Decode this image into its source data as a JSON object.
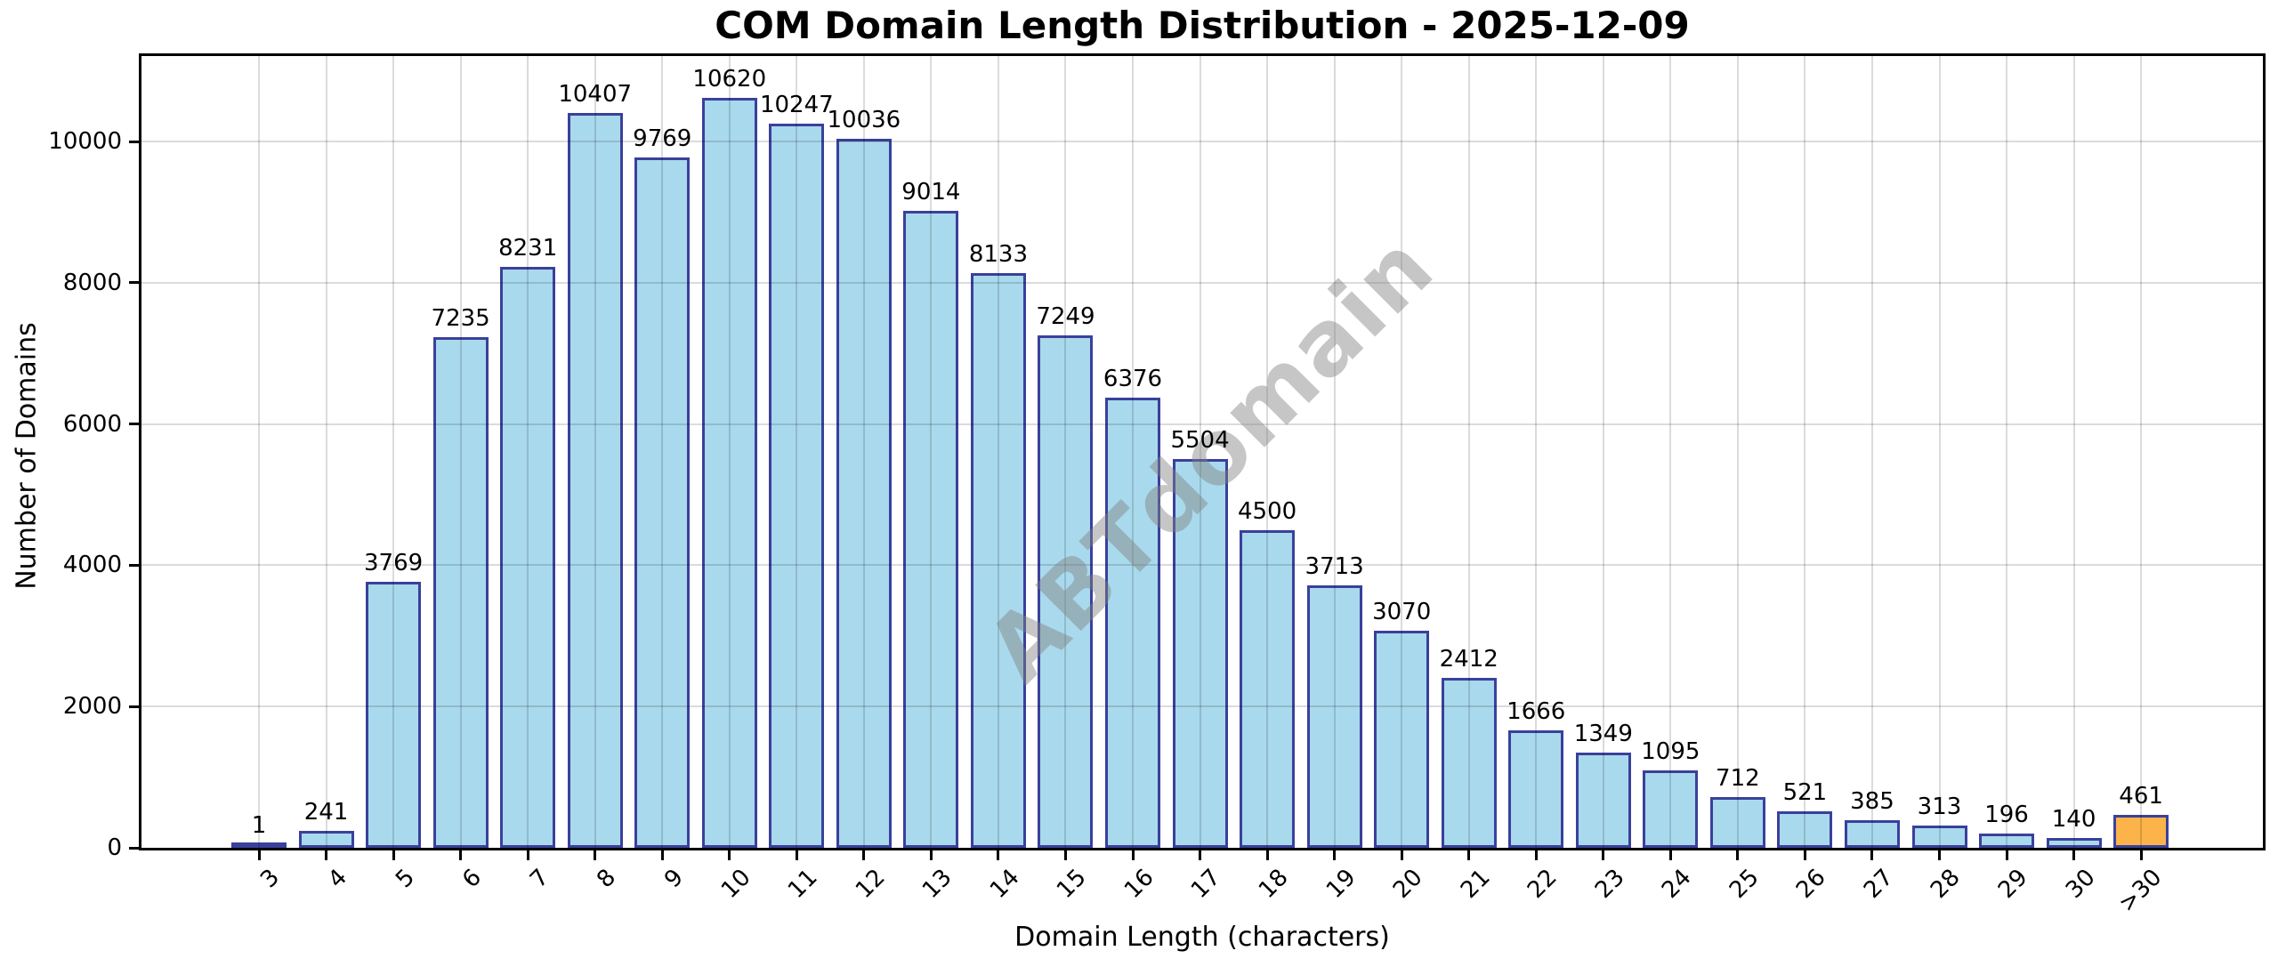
{
  "page": {
    "background": "#ffffff"
  },
  "chart_data": {
    "type": "bar",
    "title": "COM Domain Length Distribution - 2025-12-09",
    "xlabel": "Domain Length (characters)",
    "ylabel": "Number of Domains",
    "categories": [
      "3",
      "4",
      "5",
      "6",
      "7",
      "8",
      "9",
      "10",
      "11",
      "12",
      "13",
      "14",
      "15",
      "16",
      "17",
      "18",
      "19",
      "20",
      "21",
      "22",
      "23",
      "24",
      "25",
      "26",
      "27",
      "28",
      "29",
      "30",
      ">30"
    ],
    "values": [
      1,
      241,
      3769,
      7235,
      8231,
      10407,
      9769,
      10620,
      10247,
      10036,
      9014,
      8133,
      7249,
      6376,
      5504,
      4500,
      3713,
      3070,
      2412,
      1666,
      1349,
      1095,
      712,
      521,
      385,
      313,
      196,
      140,
      461
    ],
    "value_labels_shown": true,
    "yticks": [
      0,
      2000,
      4000,
      6000,
      8000,
      10000
    ],
    "ylim": [
      0,
      11210
    ],
    "grid": true,
    "xticklabel_rotation": 45,
    "legend": "none",
    "watermark": "ABTdomain",
    "colors": {
      "bar_fill": "#a9d9ec",
      "bar_edge": "#3a409b",
      "highlight_fill": "#fbb34a",
      "highlight_edge": "#3a409b",
      "axis": "#000000",
      "grid": "#dddddd",
      "text": "#000000",
      "watermark": "#808080"
    },
    "highlight_index": 28
  }
}
